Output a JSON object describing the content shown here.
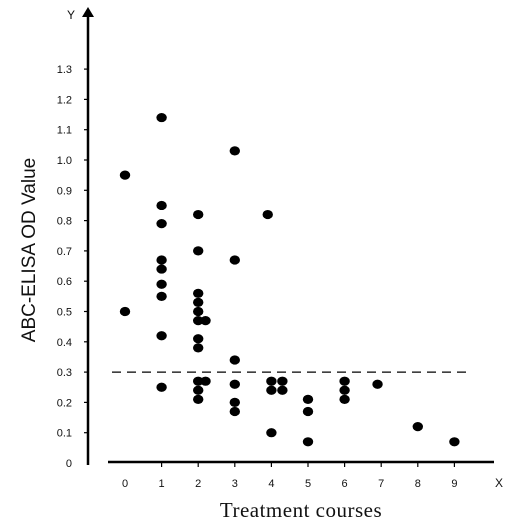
{
  "chart_data": {
    "type": "scatter",
    "xlabel": "Treatment courses",
    "ylabel": "ABC-ELISA OD Value",
    "x_axis_name": "X",
    "y_axis_name": "Y",
    "x_ticks": [
      "0",
      "1",
      "2",
      "3",
      "4",
      "5",
      "6",
      "7",
      "8",
      "9"
    ],
    "y_ticks": [
      "0",
      "0.1",
      "0.2",
      "0.3",
      "0.4",
      "0.5",
      "0.6",
      "0.7",
      "0.8",
      "0.9",
      "1.0",
      "1.1",
      "1.2",
      "1.3"
    ],
    "xlim": [
      -0.5,
      10
    ],
    "ylim": [
      0,
      1.4
    ],
    "grid": false,
    "cutoff_line": {
      "y": 0.3,
      "style": "dashed"
    },
    "marker_color": "#000000",
    "points": [
      {
        "x": 0,
        "y": 0.95
      },
      {
        "x": 0,
        "y": 0.5
      },
      {
        "x": 1,
        "y": 1.14
      },
      {
        "x": 1,
        "y": 0.85
      },
      {
        "x": 1,
        "y": 0.79
      },
      {
        "x": 1,
        "y": 0.67
      },
      {
        "x": 1,
        "y": 0.64
      },
      {
        "x": 1,
        "y": 0.59
      },
      {
        "x": 1,
        "y": 0.55
      },
      {
        "x": 1,
        "y": 0.42
      },
      {
        "x": 1,
        "y": 0.25
      },
      {
        "x": 2,
        "y": 0.82
      },
      {
        "x": 2,
        "y": 0.7
      },
      {
        "x": 2,
        "y": 0.56
      },
      {
        "x": 2,
        "y": 0.53
      },
      {
        "x": 2,
        "y": 0.5
      },
      {
        "x": 2,
        "y": 0.47
      },
      {
        "x": 2.2,
        "y": 0.47
      },
      {
        "x": 2,
        "y": 0.41
      },
      {
        "x": 2,
        "y": 0.38
      },
      {
        "x": 2,
        "y": 0.27
      },
      {
        "x": 2.2,
        "y": 0.27
      },
      {
        "x": 2,
        "y": 0.24
      },
      {
        "x": 2,
        "y": 0.21
      },
      {
        "x": 3,
        "y": 1.03
      },
      {
        "x": 3,
        "y": 0.67
      },
      {
        "x": 3,
        "y": 0.34
      },
      {
        "x": 3,
        "y": 0.26
      },
      {
        "x": 3,
        "y": 0.2
      },
      {
        "x": 3,
        "y": 0.17
      },
      {
        "x": 3.9,
        "y": 0.82
      },
      {
        "x": 4,
        "y": 0.27
      },
      {
        "x": 4.3,
        "y": 0.27
      },
      {
        "x": 4,
        "y": 0.24
      },
      {
        "x": 4.3,
        "y": 0.24
      },
      {
        "x": 4,
        "y": 0.1
      },
      {
        "x": 5,
        "y": 0.21
      },
      {
        "x": 5,
        "y": 0.17
      },
      {
        "x": 5,
        "y": 0.07
      },
      {
        "x": 6,
        "y": 0.27
      },
      {
        "x": 6,
        "y": 0.24
      },
      {
        "x": 6,
        "y": 0.21
      },
      {
        "x": 6.9,
        "y": 0.26
      },
      {
        "x": 8,
        "y": 0.12
      },
      {
        "x": 9,
        "y": 0.07
      }
    ]
  }
}
